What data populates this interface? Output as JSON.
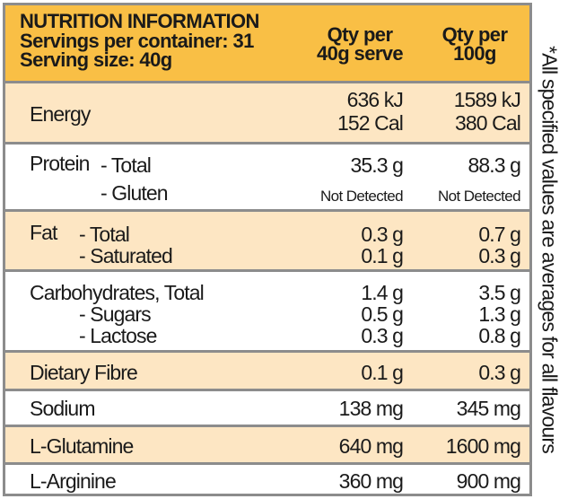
{
  "header": {
    "title": "NUTRITION INFORMATION",
    "servings": "Servings per container: 31",
    "serving_size": "Serving size: 40g",
    "col1": [
      "Qty per",
      "40g serve"
    ],
    "col2": [
      "Qty per",
      "100g"
    ]
  },
  "energy": {
    "label": "Energy",
    "v1": [
      "636 kJ",
      "152 Cal"
    ],
    "v2": [
      "1589 kJ",
      "380 Cal"
    ]
  },
  "protein": {
    "label": "Protein",
    "sub": [
      "- Total",
      "- Gluten"
    ],
    "v1": [
      "35.3 g",
      "Not Detected"
    ],
    "v2": [
      "88.3 g",
      "Not Detected"
    ]
  },
  "fat": {
    "label": "Fat",
    "sub": [
      "- Total",
      "- Saturated"
    ],
    "v1": [
      "0.3 g",
      "0.1 g"
    ],
    "v2": [
      "0.7 g",
      "0.3 g"
    ]
  },
  "carbs": {
    "label": "Carbohydrates, Total",
    "sub": [
      "- Sugars",
      "- Lactose"
    ],
    "v1": [
      "1.4 g",
      "0.5 g",
      "0.3 g"
    ],
    "v2": [
      "3.5 g",
      "1.3 g",
      "0.8 g"
    ]
  },
  "fibre": {
    "label": "Dietary Fibre",
    "v1": "0.1 g",
    "v2": "0.3 g"
  },
  "sodium": {
    "label": "Sodium",
    "v1": "138 mg",
    "v2": "345 mg"
  },
  "glutamine": {
    "label": "L-Glutamine",
    "v1": "640 mg",
    "v2": "1600 mg"
  },
  "arginine": {
    "label": "L-Arginine",
    "v1": "360 mg",
    "v2": "900 mg"
  },
  "footnote": "*All specified values are averages for all flavours",
  "colors": {
    "header": "#f9bf45",
    "peach": "#fde6c3",
    "border": "#8c8c8c"
  }
}
